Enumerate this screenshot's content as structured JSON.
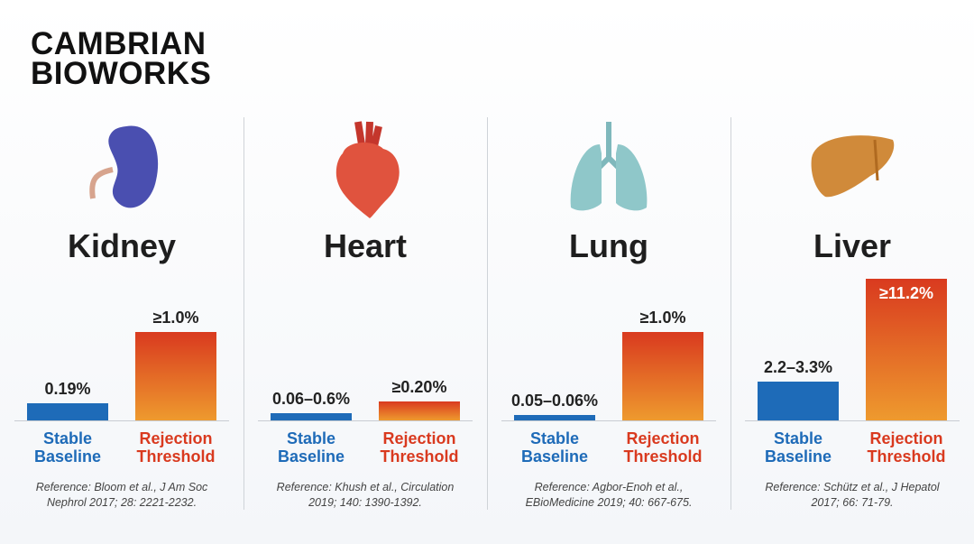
{
  "brand": {
    "lines": [
      "CAMBRIAN",
      "BIOWORKS"
    ]
  },
  "chart_data": [
    {
      "type": "bar",
      "title": "Kidney",
      "categories": [
        "Stable Baseline",
        "Rejection Threshold"
      ],
      "values": [
        0.19,
        1.0
      ],
      "value_labels": [
        "0.19%",
        "≥1.0%"
      ],
      "colors": [
        "#1e6bb8",
        "#d93a1f"
      ],
      "ylim": [
        0,
        1.6
      ],
      "reference": "Reference: Bloom et al., J Am Soc Nephrol 2017; 28: 2221-2232."
    },
    {
      "type": "bar",
      "title": "Heart",
      "categories": [
        "Stable Baseline",
        "Rejection Threshold"
      ],
      "values": [
        0.08,
        0.2
      ],
      "value_labels": [
        "0.06–0.6%",
        "≥0.20%"
      ],
      "colors": [
        "#1e6bb8",
        "#d93a1f"
      ],
      "ylim": [
        0,
        1.5
      ],
      "reference": "Reference: Khush et al., Circulation 2019; 140: 1390-1392."
    },
    {
      "type": "bar",
      "title": "Lung",
      "categories": [
        "Stable Baseline",
        "Rejection Threshold"
      ],
      "values": [
        0.06,
        1.0
      ],
      "value_labels": [
        "0.05–0.06%",
        "≥1.0%"
      ],
      "colors": [
        "#1e6bb8",
        "#d93a1f"
      ],
      "ylim": [
        0,
        1.6
      ],
      "reference": "Reference: Agbor-Enoh et al., EBioMedicine 2019; 40: 667-675."
    },
    {
      "type": "bar",
      "title": "Liver",
      "categories": [
        "Stable Baseline",
        "Rejection Threshold"
      ],
      "values": [
        3.1,
        11.2
      ],
      "value_labels": [
        "2.2–3.3%",
        "≥11.2%"
      ],
      "colors": [
        "#1e6bb8",
        "#d93a1f"
      ],
      "ylim": [
        0,
        11.2
      ],
      "reference": "Reference: Schütz et al., J Hepatol 2017; 66: 71-79."
    }
  ]
}
